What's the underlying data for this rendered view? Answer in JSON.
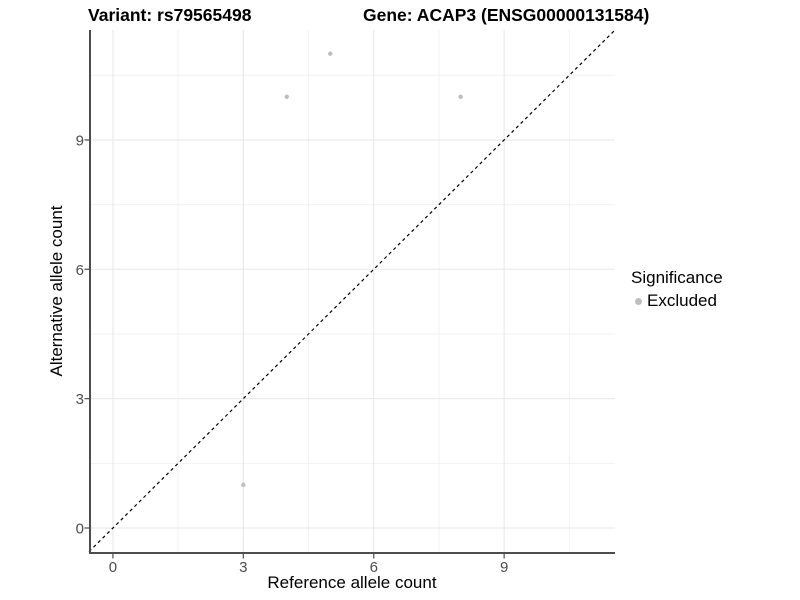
{
  "titles": {
    "variant": "Variant: rs79565498",
    "gene": "Gene: ACAP3 (ENSG00000131584)"
  },
  "chart_data": {
    "type": "scatter",
    "title_left": "Variant: rs79565498",
    "title_right": "Gene: ACAP3 (ENSG00000131584)",
    "xlabel": "Reference allele count",
    "ylabel": "Alternative allele count",
    "xlim": [
      -0.55,
      11.55
    ],
    "ylim": [
      -0.58,
      11.55
    ],
    "x_ticks": [
      0,
      3,
      6,
      9
    ],
    "y_ticks": [
      0,
      3,
      6,
      9
    ],
    "x_minor": [
      1.5,
      4.5,
      7.5,
      10.5
    ],
    "y_minor": [
      1.5,
      4.5,
      7.5,
      10.5
    ],
    "grid": true,
    "identity_line": {
      "style": "dashed",
      "from": [
        -0.55,
        -0.55
      ],
      "to": [
        11.55,
        11.55
      ],
      "color": "#000000"
    },
    "series": [
      {
        "name": "Excluded",
        "color": "#bebebe",
        "points": [
          [
            3,
            1
          ],
          [
            4,
            10
          ],
          [
            5,
            11
          ],
          [
            8,
            10
          ]
        ]
      }
    ],
    "legend": {
      "title": "Significance",
      "position": "right",
      "entries": [
        {
          "label": "Excluded",
          "color": "#bebebe"
        }
      ]
    }
  },
  "colors": {
    "background": "#ffffff",
    "grid_major": "#e7e7e7",
    "grid_minor": "#f2f2f2",
    "axis_line": "#4d4d4d",
    "tick_label": "#4d4d4d",
    "point": "#bebebe"
  }
}
